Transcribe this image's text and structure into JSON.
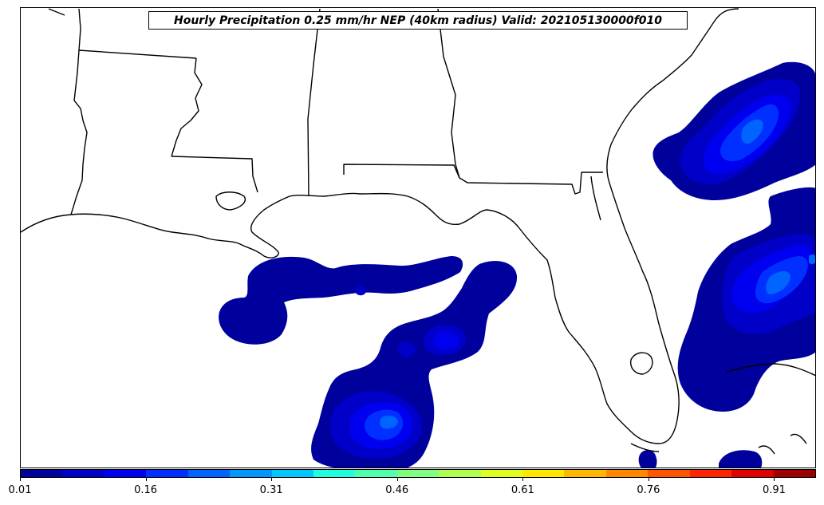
{
  "title": "Hourly Precipitation 0.25 mm/hr NEP (40km radius) Valid: 202105130000f010",
  "colorbar": {
    "colors": [
      "#00009c",
      "#0000c8",
      "#0000f0",
      "#0030ff",
      "#0064ff",
      "#0098ff",
      "#00c8ff",
      "#1effe0",
      "#50ffb0",
      "#80ff80",
      "#b0ff50",
      "#e0ff20",
      "#ffe800",
      "#ffb800",
      "#ff8800",
      "#ff5400",
      "#ff2400",
      "#e00000",
      "#9c0000"
    ],
    "tick_labels": [
      "0.01",
      "0.16",
      "0.31",
      "0.46",
      "0.61",
      "0.76",
      "0.91"
    ]
  },
  "precip_colors": {
    "level1": "#00009c",
    "level2": "#0000c8",
    "level3": "#0000f0",
    "level4": "#0030ff",
    "level5": "#0064ff"
  }
}
